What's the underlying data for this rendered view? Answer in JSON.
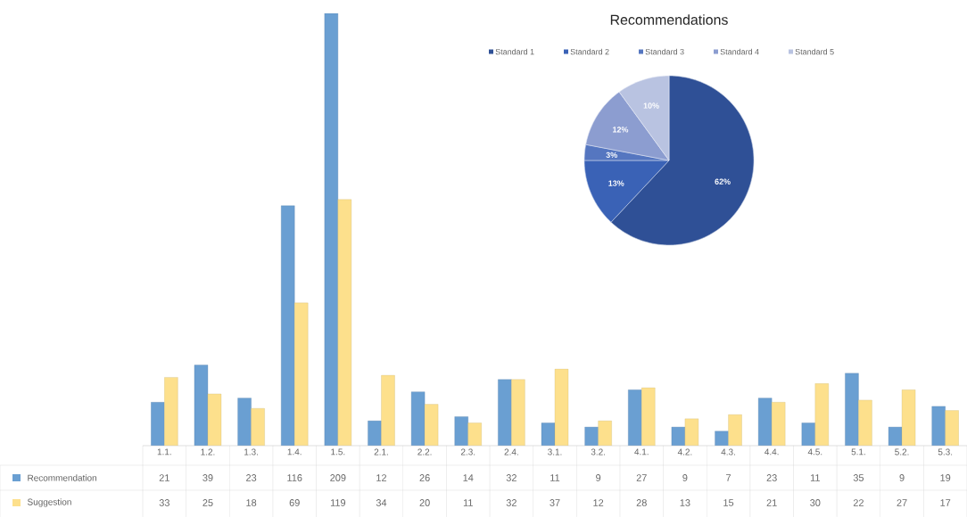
{
  "chart_data": [
    {
      "type": "bar",
      "categories": [
        "1.1.",
        "1.2.",
        "1.3.",
        "1.4.",
        "1.5.",
        "2.1.",
        "2.2.",
        "2.3.",
        "2.4.",
        "3.1.",
        "3.2.",
        "4.1.",
        "4.2.",
        "4.3.",
        "4.4.",
        "4.5.",
        "5.1.",
        "5.2.",
        "5.3."
      ],
      "series": [
        {
          "name": "Recommendation",
          "color": "#6a9fd2",
          "values": [
            21,
            39,
            23,
            116,
            209,
            12,
            26,
            14,
            32,
            11,
            9,
            27,
            9,
            7,
            23,
            11,
            35,
            9,
            19
          ]
        },
        {
          "name": "Suggestion",
          "color": "#fde08c",
          "values": [
            33,
            25,
            18,
            69,
            119,
            34,
            20,
            11,
            32,
            37,
            12,
            28,
            13,
            15,
            21,
            30,
            22,
            27,
            17
          ]
        }
      ],
      "data_labels": true,
      "legend": "bottom left"
    },
    {
      "type": "pie",
      "title": "Recommendations",
      "categories": [
        "Standard 1",
        "Standard 2",
        "Standard 3",
        "Standard 4",
        "Standard 5"
      ],
      "values": [
        62,
        13,
        3,
        12,
        10
      ],
      "colors": [
        "#2f5096",
        "#3a62b6",
        "#5576c0",
        "#8c9dd0",
        "#b9c3e1"
      ],
      "value_labels": [
        "62%",
        "13%",
        "3%",
        "12%",
        "10%"
      ],
      "legend": "top"
    }
  ]
}
